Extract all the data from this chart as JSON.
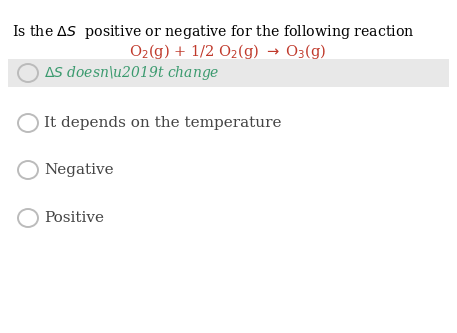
{
  "bg_color": "#ffffff",
  "highlight_bg": "#e8e8e8",
  "title_line1": "Is the ΔS  positive or negative for the following reaction",
  "title_line2": "O₂(g) + 1/2 O₂(g) → O₃(g)",
  "title_color": "#000000",
  "title_line2_color": "#c0392b",
  "option_texts": [
    "ΔS doesn’t change",
    "It depends on the temperature",
    "Negative",
    "Positive"
  ],
  "option_highlighted": [
    true,
    false,
    false,
    false
  ],
  "option_colors": [
    "#3a9a6e",
    "#444444",
    "#444444",
    "#444444"
  ],
  "circle_color": "#bbbbbb",
  "figsize": [
    4.57,
    3.33
  ],
  "dpi": 100
}
